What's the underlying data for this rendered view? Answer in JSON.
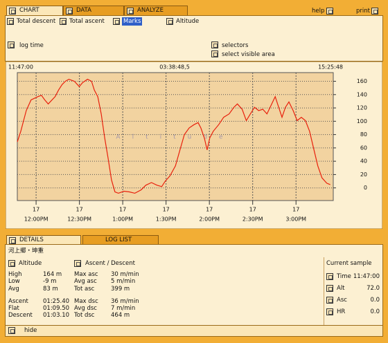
{
  "tabs": [
    "CHART",
    "DATA",
    "ANALYZE"
  ],
  "help": "help",
  "print": "print",
  "toolbar": [
    "Total descent",
    "Total ascent",
    "Marks",
    "Altitude"
  ],
  "options": {
    "log_time": "log time",
    "selectors": "selectors",
    "select_visible_area": "select visible area"
  },
  "chart_data": {
    "type": "line",
    "header_left": "11:47:00",
    "header_center": "03:38:48,5",
    "header_right": "15:25:48",
    "watermark": "Altitude",
    "color": "#e8200c",
    "x": [
      707,
      709.4,
      713.2,
      716.5,
      721.3,
      723.7,
      726,
      728.4,
      733.2,
      735.6,
      738,
      740.3,
      742.7,
      746.5,
      749.9,
      752.2,
      755.6,
      758.4,
      760.3,
      762.7,
      765.1,
      767.5,
      769.9,
      772.2,
      774.6,
      777,
      780.8,
      784.6,
      788.4,
      792.7,
      796,
      799.9,
      803.7,
      807,
      809.4,
      812.7,
      816.5,
      819.9,
      822.7,
      826,
      829.4,
      832.2,
      834.1,
      836.5,
      838.4,
      840.3,
      842.7,
      846.5,
      849.9,
      853.7,
      857,
      859.4,
      862.7,
      865.6,
      868.4,
      871.3,
      874.1,
      877,
      879.9,
      883.2,
      885.6,
      888,
      890.3,
      892.7,
      895.1,
      898,
      900.8,
      903.7,
      906.5,
      909.4,
      912.2,
      915.1,
      918,
      921.3,
      923.7
    ],
    "values": [
      69,
      85,
      116,
      132,
      137,
      139,
      132,
      126,
      137,
      147,
      155,
      160,
      163,
      160,
      152,
      158,
      163,
      160,
      147,
      137,
      111,
      75,
      44,
      12,
      -6,
      -8,
      -5,
      -6,
      -8,
      -3,
      4,
      8,
      4,
      2,
      10,
      18,
      33,
      59,
      80,
      90,
      95,
      98,
      90,
      75,
      57,
      75,
      85,
      95,
      106,
      111,
      121,
      126,
      118,
      101,
      111,
      121,
      116,
      118,
      111,
      126,
      137,
      121,
      106,
      121,
      129,
      116,
      101,
      106,
      101,
      85,
      59,
      33,
      15,
      7,
      5
    ],
    "xlim": [
      707,
      925.8
    ],
    "ylim": [
      -19,
      173
    ],
    "xticks": [
      {
        "value": 720,
        "label": "12:00PM",
        "day": "17"
      },
      {
        "value": 750,
        "label": "12:30PM",
        "day": "17"
      },
      {
        "value": 780,
        "label": "1:00PM",
        "day": "17"
      },
      {
        "value": 810,
        "label": "1:30PM",
        "day": "17"
      },
      {
        "value": 840,
        "label": "2:00PM",
        "day": "17"
      },
      {
        "value": 870,
        "label": "2:30PM",
        "day": "17"
      },
      {
        "value": 900,
        "label": "3:00PM",
        "day": "17"
      }
    ],
    "yticks": [
      0,
      20,
      40,
      60,
      80,
      100,
      120,
      140,
      160
    ],
    "grid": true
  },
  "bottom_tabs": [
    "DETAILS",
    "LOG LIST"
  ],
  "location": "河上鄉・坤重",
  "sections": [
    "Altitude",
    "Ascent / Descent"
  ],
  "details": {
    "rows": [
      [
        "High",
        "164 m",
        "Max asc",
        "30 m/min"
      ],
      [
        "Low",
        "-9 m",
        "Avg asc",
        "5 m/min"
      ],
      [
        "Avg",
        "83 m",
        "Tot asc",
        "399 m"
      ],
      [
        "Ascent",
        "01:25.40",
        "Max dsc",
        "36 m/min"
      ],
      [
        "Flat",
        "01:09.50",
        "Avg dsc",
        "7 m/min"
      ],
      [
        "Descent",
        "01:03.10",
        "Tot dsc",
        "464 m"
      ]
    ]
  },
  "current_sample": {
    "title": "Current sample",
    "rows": [
      [
        "Time",
        "11:47:00"
      ],
      [
        "Alt",
        "72.0"
      ],
      [
        "Asc",
        "0.0"
      ],
      [
        "HR",
        "0.0"
      ]
    ]
  },
  "hide": "hide"
}
